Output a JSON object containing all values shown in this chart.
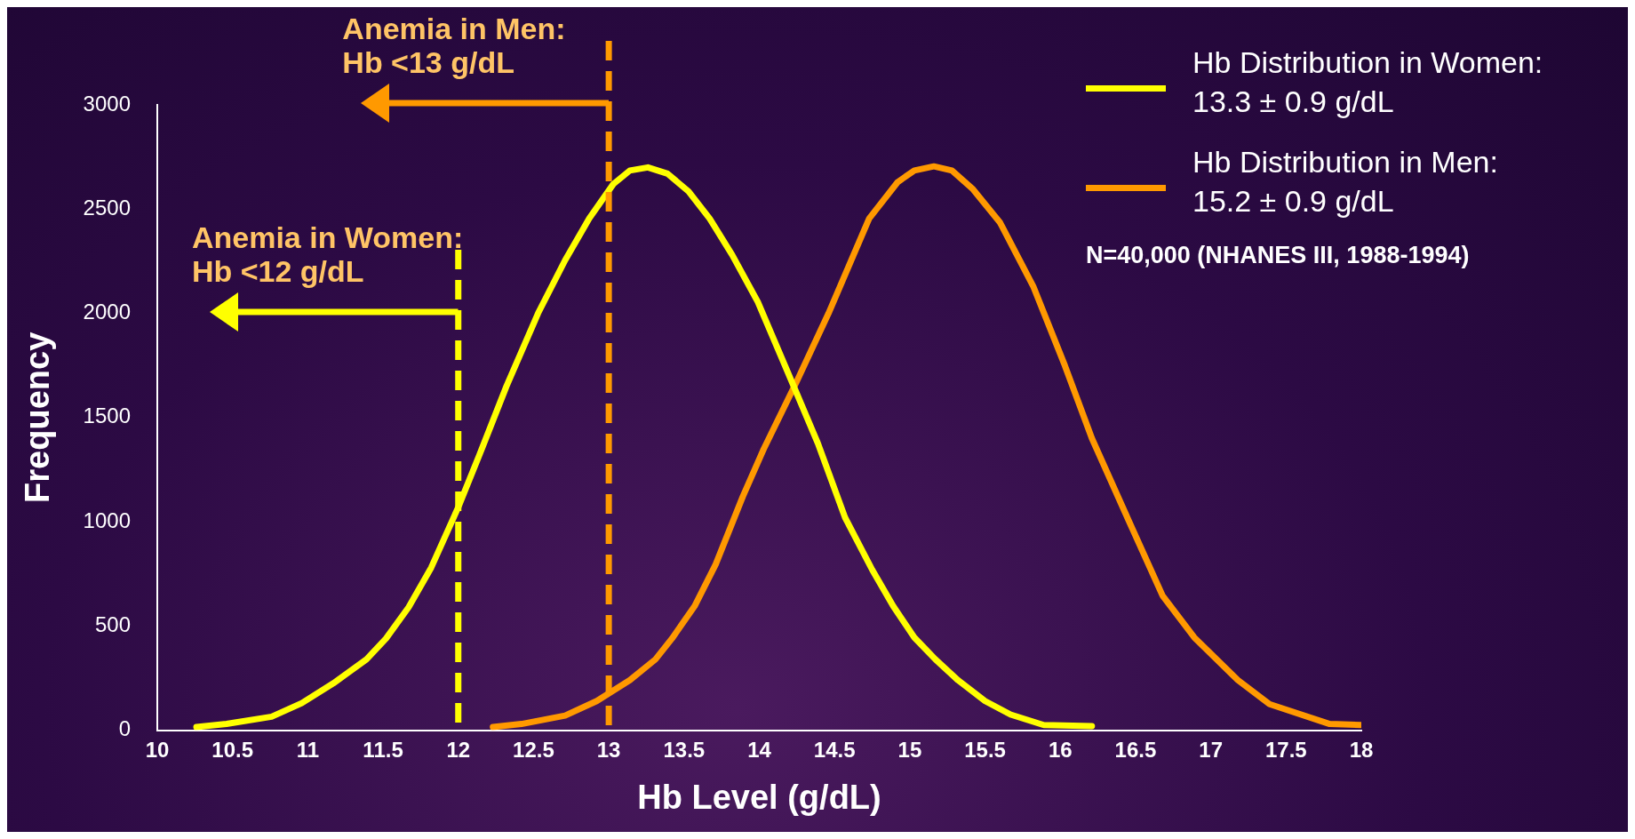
{
  "chart_data": {
    "type": "line",
    "xlabel": "Hb Level (g/dL)",
    "ylabel": "Frequency",
    "xlim": [
      10,
      18
    ],
    "xticks": [
      10,
      10.5,
      11,
      11.5,
      12,
      12.5,
      13,
      13.5,
      14,
      14.5,
      15,
      15.5,
      16,
      16.5,
      17,
      17.5,
      18
    ],
    "ylim": [
      0,
      3000
    ],
    "yticks": [
      0,
      500,
      1000,
      1500,
      2000,
      2500,
      3000
    ],
    "grid": false,
    "legend": "top right",
    "marker": "none",
    "line_style": "solid",
    "series": [
      {
        "name": "Hb Distribution in Women:\n13.3 ± 0.9 g/dL",
        "color": "#ffff00",
        "x": [
          10.26,
          10.46,
          10.76,
          10.96,
          11.17,
          11.39,
          11.52,
          11.67,
          11.82,
          12.0,
          12.14,
          12.32,
          12.53,
          12.71,
          12.87,
          13.03,
          13.14,
          13.26,
          13.39,
          13.53,
          13.67,
          13.82,
          13.99,
          14.17,
          14.39,
          14.57,
          14.75,
          14.89,
          15.03,
          15.17,
          15.32,
          15.5,
          15.67,
          15.89,
          16.21
        ],
        "values": [
          15,
          30,
          65,
          130,
          225,
          340,
          440,
          590,
          780,
          1070,
          1320,
          1650,
          2000,
          2255,
          2455,
          2620,
          2685,
          2700,
          2670,
          2585,
          2455,
          2280,
          2055,
          1750,
          1375,
          1020,
          770,
          595,
          445,
          340,
          240,
          140,
          75,
          25,
          20
        ]
      },
      {
        "name": "Hb Distribution in Men:\n15.2 ± 0.9 g/dL",
        "color": "#ff9900",
        "x": [
          12.23,
          12.42,
          12.71,
          12.92,
          13.14,
          13.31,
          13.42,
          13.57,
          13.71,
          13.89,
          14.03,
          14.25,
          14.46,
          14.73,
          14.92,
          15.03,
          15.16,
          15.28,
          15.42,
          15.6,
          15.82,
          16.03,
          16.21,
          16.43,
          16.68,
          16.89,
          17.18,
          17.39,
          17.79,
          18.0
        ],
        "values": [
          15,
          30,
          70,
          140,
          240,
          340,
          440,
          595,
          795,
          1120,
          1350,
          1675,
          2000,
          2455,
          2630,
          2685,
          2705,
          2685,
          2595,
          2435,
          2130,
          1750,
          1400,
          1045,
          645,
          445,
          240,
          125,
          30,
          25
        ]
      }
    ],
    "ref_lines": [
      {
        "axis": "x",
        "value": 12,
        "label": "Anemia in Women:\nHb <12 g/dL",
        "color": "#ffff00",
        "line_style": "dashed"
      },
      {
        "axis": "x",
        "value": 13,
        "label": "Anemia in Men:\nHb <13 g/dL",
        "color": "#ff9900",
        "line_style": "dashed"
      }
    ],
    "annotations": [
      "N=40,000 (NHANES III, 1988-1994)"
    ]
  }
}
